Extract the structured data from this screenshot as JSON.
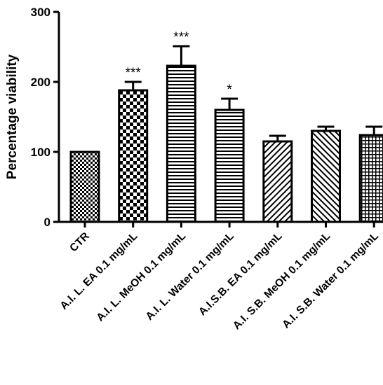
{
  "chart_data": {
    "type": "bar",
    "ylabel": "Percentage viability",
    "xlabel": "",
    "title": "",
    "ylim": [
      0,
      300
    ],
    "yticks": [
      0,
      100,
      200,
      300
    ],
    "categories": [
      "CTR",
      "A.I. L. EA 0.1 mg/mL",
      "A.I. L. MeOH 0.1 mg/mL",
      "A.I. L. Water 0.1 mg/mL",
      "A.I.S.B. EA 0.1 mg/mL",
      "A.I. S.B. MeOH 0.1 mg/mL",
      "A.I. S.B. Water 0.1 mg/mL"
    ],
    "values": [
      100,
      188,
      223,
      160,
      115,
      130,
      124
    ],
    "errors": [
      0,
      12,
      28,
      16,
      8,
      6,
      12
    ],
    "significance": [
      "",
      "***",
      "***",
      "*",
      "",
      "",
      ""
    ],
    "patterns": [
      "fine-checker",
      "bold-checker",
      "horizontal-lines",
      "horizontal-lines",
      "diagonal-down",
      "diagonal-up",
      "grid"
    ],
    "grid": false,
    "legend": "none"
  }
}
